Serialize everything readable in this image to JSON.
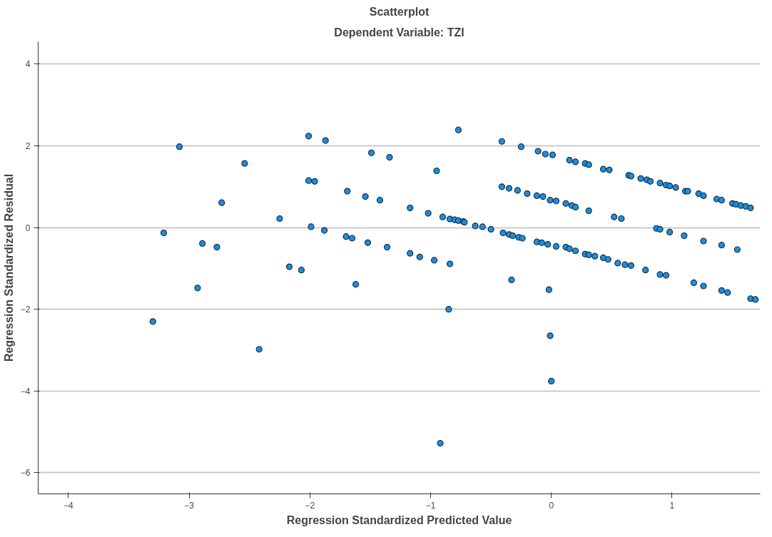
{
  "chart_data": {
    "type": "scatter",
    "title": "Scatterplot",
    "subtitle": "Dependent Variable: TZI",
    "xlabel": "Regression Standardized Predicted Value",
    "ylabel": "Regression Standardized Residual",
    "xlim": [
      -4.25,
      1.73
    ],
    "ylim": [
      -6.52,
      4.55
    ],
    "xticks": [
      -4,
      -3,
      -2,
      -1,
      0,
      1
    ],
    "yticks": [
      -6,
      -4,
      -2,
      0,
      2,
      4
    ],
    "grid": "y",
    "marker": "circle",
    "series": [
      {
        "color": "#1a8fe0",
        "x": [
          -3.3,
          -3.21,
          -3.08,
          -2.93,
          -2.89,
          -2.77,
          -2.73,
          -2.54,
          -2.42,
          -2.25,
          -2.17,
          -2.07,
          -2.01,
          -2.01,
          -1.96,
          -1.99,
          -1.88,
          -1.87,
          -1.49,
          -1.34,
          -1.69,
          -1.54,
          -1.42,
          -1.17,
          -1.02,
          -0.9,
          -0.84,
          -0.8,
          -0.77,
          -0.73,
          -0.72,
          -0.63,
          -0.57,
          -0.5,
          -0.77,
          -0.95,
          -1.7,
          -1.65,
          -1.52,
          -1.36,
          -1.17,
          -1.09,
          -0.97,
          -0.84,
          -1.62,
          -0.85,
          -0.41,
          -0.25,
          -0.11,
          -0.05,
          0.01,
          0.15,
          0.2,
          0.28,
          0.31,
          0.43,
          0.48,
          0.64,
          0.66,
          0.74,
          0.79,
          0.82,
          0.9,
          0.95,
          0.98,
          1.03,
          1.11,
          1.13,
          1.22,
          1.26,
          1.37,
          1.41,
          1.5,
          1.53,
          1.57,
          1.61,
          1.65,
          -0.41,
          -0.35,
          -0.28,
          -0.2,
          -0.12,
          -0.07,
          -0.01,
          0.04,
          0.12,
          0.17,
          0.2,
          0.31,
          0.52,
          0.58,
          0.87,
          0.9,
          0.98,
          1.1,
          1.26,
          1.41,
          1.54,
          -0.4,
          -0.35,
          -0.32,
          -0.27,
          -0.24,
          -0.12,
          -0.08,
          -0.03,
          0.04,
          0.12,
          0.15,
          0.2,
          0.28,
          0.31,
          0.36,
          0.43,
          0.47,
          0.55,
          0.61,
          0.66,
          0.78,
          0.9,
          0.95,
          1.18,
          1.26,
          1.41,
          1.46,
          1.65,
          1.69,
          -0.33,
          -0.02,
          -0.01,
          0.0,
          -0.92
        ],
        "values": [
          -2.3,
          -0.13,
          1.98,
          -1.48,
          -0.39,
          -0.48,
          0.61,
          1.57,
          -2.98,
          0.22,
          -0.96,
          -1.04,
          2.24,
          1.15,
          1.13,
          0.02,
          -0.07,
          2.13,
          1.83,
          1.72,
          0.89,
          0.76,
          0.67,
          0.48,
          0.35,
          0.26,
          0.21,
          0.19,
          0.17,
          0.15,
          0.13,
          0.04,
          0.02,
          -0.04,
          2.39,
          1.39,
          -0.22,
          -0.26,
          -0.37,
          -0.48,
          -0.63,
          -0.72,
          -0.8,
          -0.89,
          -1.39,
          -2.0,
          2.11,
          1.98,
          1.87,
          1.8,
          1.78,
          1.65,
          1.61,
          1.57,
          1.54,
          1.43,
          1.41,
          1.28,
          1.26,
          1.2,
          1.17,
          1.13,
          1.09,
          1.04,
          1.02,
          0.98,
          0.89,
          0.89,
          0.83,
          0.78,
          0.7,
          0.67,
          0.59,
          0.57,
          0.54,
          0.52,
          0.48,
          1.0,
          0.96,
          0.91,
          0.83,
          0.78,
          0.76,
          0.67,
          0.65,
          0.59,
          0.54,
          0.5,
          0.41,
          0.26,
          0.22,
          -0.02,
          -0.04,
          -0.11,
          -0.2,
          -0.33,
          -0.43,
          -0.54,
          -0.13,
          -0.17,
          -0.2,
          -0.24,
          -0.26,
          -0.35,
          -0.37,
          -0.41,
          -0.46,
          -0.48,
          -0.52,
          -0.57,
          -0.65,
          -0.67,
          -0.7,
          -0.74,
          -0.78,
          -0.87,
          -0.91,
          -0.93,
          -1.04,
          -1.15,
          -1.17,
          -1.35,
          -1.43,
          -1.54,
          -1.59,
          -1.74,
          -1.76,
          -1.28,
          -1.52,
          -2.65,
          -3.76,
          -5.28
        ]
      }
    ]
  }
}
